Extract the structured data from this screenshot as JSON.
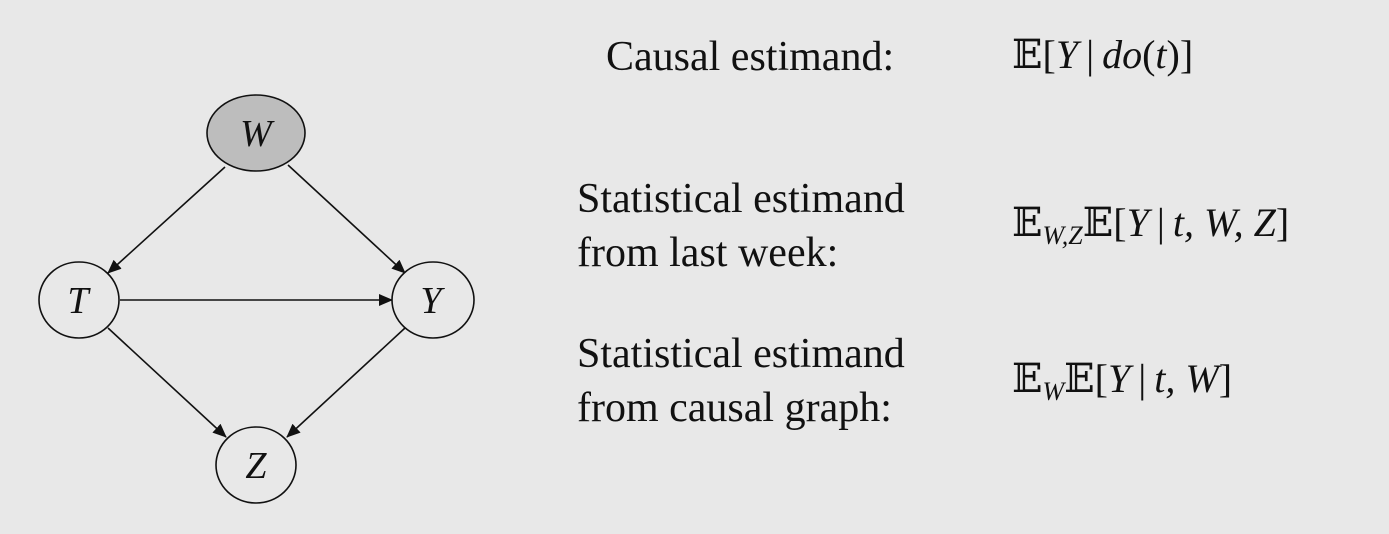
{
  "graph": {
    "nodes": [
      {
        "id": "W",
        "label": "W",
        "shaded": true
      },
      {
        "id": "T",
        "label": "T",
        "shaded": false
      },
      {
        "id": "Y",
        "label": "Y",
        "shaded": false
      },
      {
        "id": "Z",
        "label": "Z",
        "shaded": false
      }
    ],
    "edges": [
      {
        "from": "W",
        "to": "T"
      },
      {
        "from": "W",
        "to": "Y"
      },
      {
        "from": "T",
        "to": "Y"
      },
      {
        "from": "T",
        "to": "Z"
      },
      {
        "from": "Y",
        "to": "Z"
      }
    ],
    "colors": {
      "shaded_fill": "#bdbdbd",
      "node_fill": "#e8e8e8",
      "stroke": "#111111"
    }
  },
  "rows": {
    "causal": {
      "label_lines": [
        "Causal estimand:"
      ],
      "expr": {
        "bb": "𝔼",
        "open": "[",
        "Y": "Y",
        "bar": "|",
        "do": "do",
        "paren_open": "(",
        "t": "t",
        "paren_close": ")",
        "close": "]"
      }
    },
    "last_week": {
      "label_lines": [
        "Statistical estimand",
        "from last week:"
      ],
      "expr": {
        "bb1": "𝔼",
        "sub": "W,Z",
        "bb2": "𝔼",
        "open": "[",
        "Y": "Y",
        "bar": "|",
        "t": "t,",
        "W": "W,",
        "Z": "Z",
        "close": "]"
      }
    },
    "graph_row": {
      "label_lines": [
        "Statistical estimand",
        "from causal graph:"
      ],
      "expr": {
        "bb1": "𝔼",
        "sub": "W",
        "bb2": "𝔼",
        "open": "[",
        "Y": "Y",
        "bar": "|",
        "t": "t,",
        "W": "W",
        "close": "]"
      }
    }
  }
}
